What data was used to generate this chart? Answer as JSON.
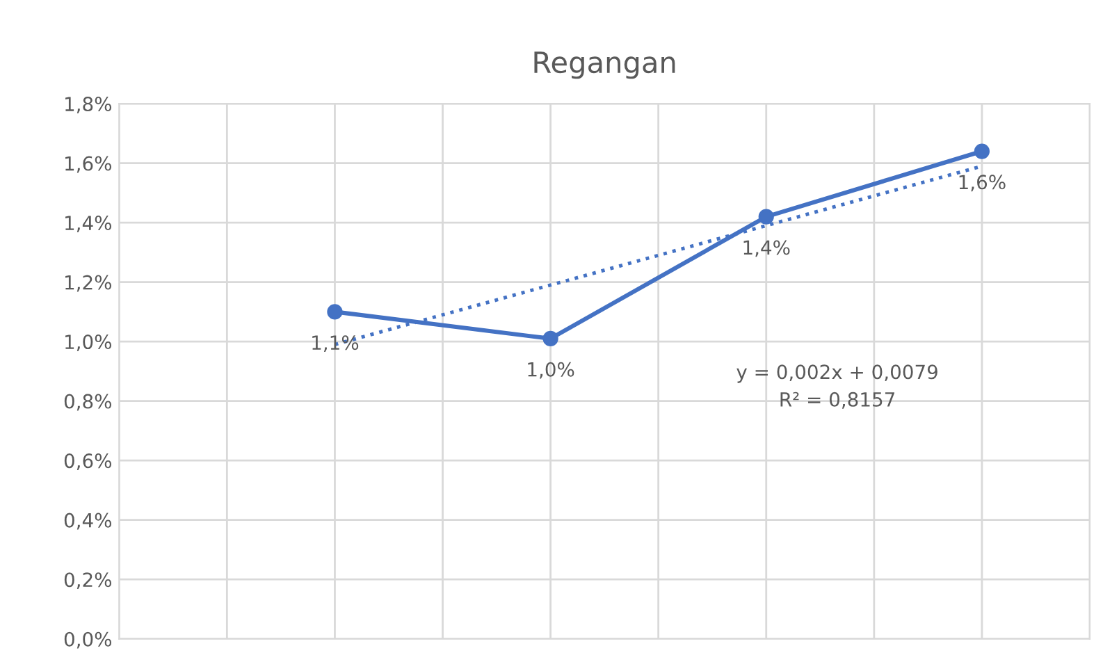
{
  "chart_data": {
    "type": "line",
    "title": "Regangan",
    "categories": [
      null,
      null,
      null,
      null
    ],
    "series": [
      {
        "color": "#4472c4",
        "values": [
          1.1,
          1.01,
          1.42,
          1.64
        ],
        "marker": "circle",
        "line_style": "solid",
        "value_labels": [
          "1,1%",
          "1,0%",
          "1,4%",
          "1,6%"
        ]
      },
      {
        "type": "line",
        "color": "#4472c4",
        "values": [
          0.99,
          1.19,
          1.39,
          1.59
        ],
        "marker": "none",
        "line_style": "dotted"
      }
    ],
    "ylim": [
      0,
      1.8
    ],
    "yticks": [
      {
        "value": 0,
        "label": "0,0%"
      },
      {
        "value": 0.2,
        "label": "0,2%"
      },
      {
        "value": 0.4,
        "label": "0,4%"
      },
      {
        "value": 0.6,
        "label": "0,6%"
      },
      {
        "value": 0.8,
        "label": "0,8%"
      },
      {
        "value": 1.0,
        "label": "1,0%"
      },
      {
        "value": 1.2,
        "label": "1,2%"
      },
      {
        "value": 1.4,
        "label": "1,4%"
      },
      {
        "value": 1.6,
        "label": "1,6%"
      },
      {
        "value": 1.8,
        "label": "1,8%"
      }
    ],
    "tick_labels": "y",
    "grid": true,
    "annotations": [
      "y = 0,002x + 0,0079\nR² = 0,8157"
    ]
  }
}
